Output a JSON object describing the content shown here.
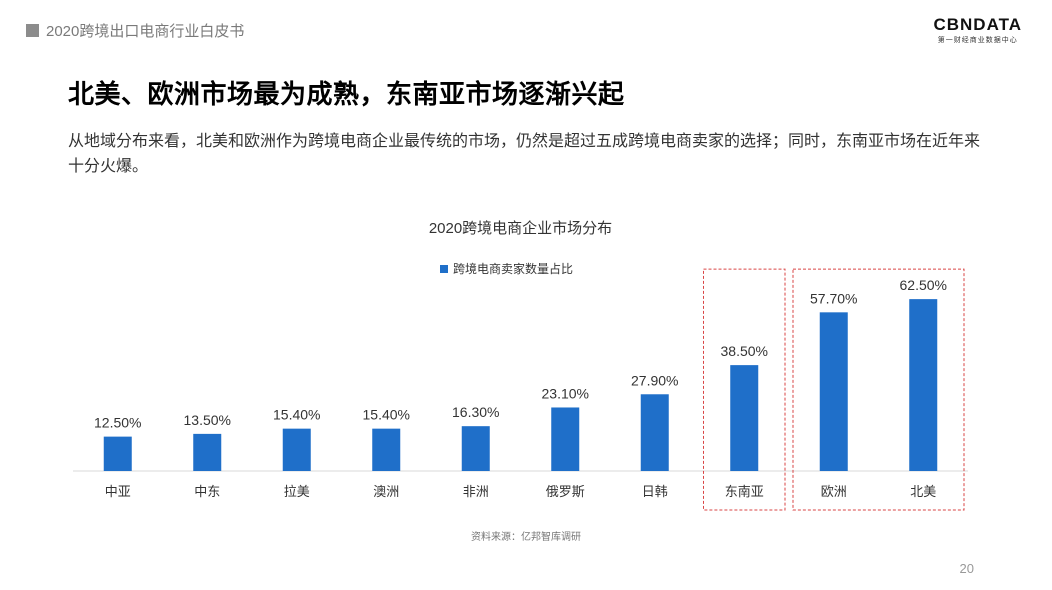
{
  "header": {
    "report_title": "2020跨境出口电商行业白皮书",
    "logo_brand": "CBNDATA",
    "logo_sub": "第一财经商业数据中心"
  },
  "headline": "北美、欧洲市场最为成熟，东南亚市场逐渐兴起",
  "lead": "从地域分布来看，北美和欧洲作为跨境电商企业最传统的市场，仍然是超过五成跨境电商卖家的选择；同时，东南亚市场在近年来十分火爆。",
  "chart_data": {
    "type": "bar",
    "title": "2020跨境电商企业市场分布",
    "categories": [
      "中亚",
      "中东",
      "拉美",
      "澳洲",
      "非洲",
      "俄罗斯",
      "日韩",
      "东南亚",
      "欧洲",
      "北美"
    ],
    "series": [
      {
        "name": "跨境电商卖家数量占比",
        "values": [
          12.5,
          13.5,
          15.4,
          15.4,
          16.3,
          23.1,
          27.9,
          38.5,
          57.7,
          62.5
        ],
        "labels": [
          "12.50%",
          "13.50%",
          "15.40%",
          "15.40%",
          "16.30%",
          "23.10%",
          "27.90%",
          "38.50%",
          "57.70%",
          "62.50%"
        ]
      }
    ],
    "ylim": [
      0,
      70
    ],
    "grid": false,
    "legend": "top-center",
    "highlight_groups": [
      [
        "东南亚"
      ],
      [
        "欧洲",
        "北美"
      ]
    ],
    "colors": {
      "bar": "#1f6fc9",
      "highlight_box": "#d94545",
      "axis": "#d9d9d9"
    }
  },
  "footer": {
    "source": "资料来源：亿邦智库调研",
    "page_number": "20"
  }
}
